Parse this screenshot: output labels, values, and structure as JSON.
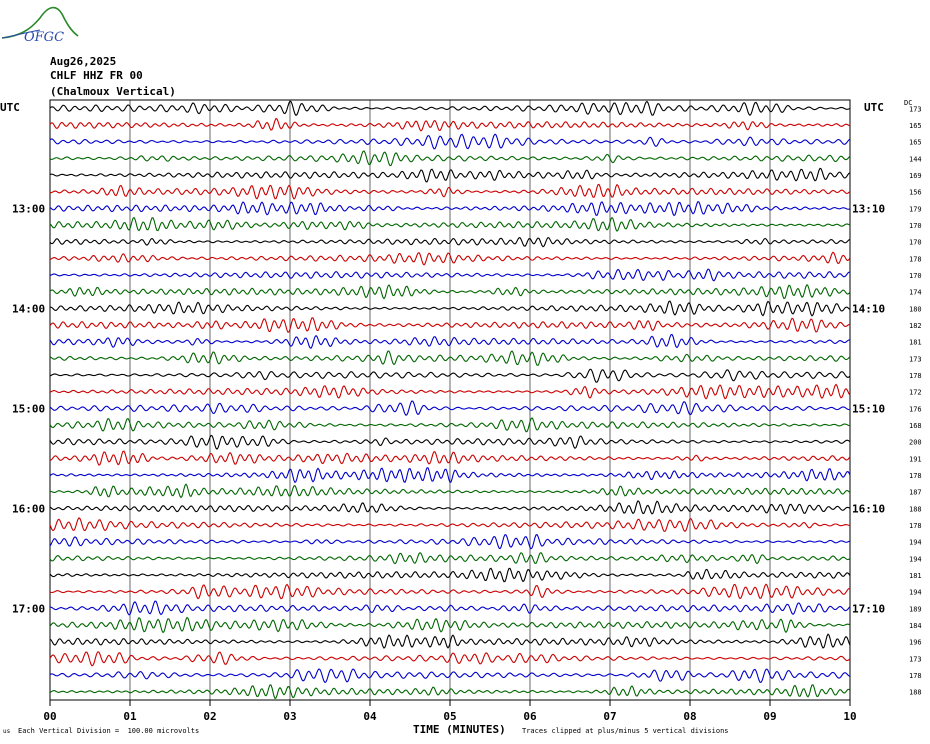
{
  "header": {
    "logo_text": "OFGC",
    "date": "Aug26,2025",
    "station": "CHLF HHZ FR 00",
    "location": "(Chalmoux Vertical)"
  },
  "utc_left_label": "UTC",
  "utc_right_label": "UTC",
  "dc_label": "DC",
  "chart_data": {
    "type": "line",
    "title": "",
    "xlabel": "TIME (MINUTES)",
    "ylabel": "",
    "xlim": [
      0,
      10
    ],
    "x_ticks": [
      "00",
      "01",
      "02",
      "03",
      "04",
      "05",
      "06",
      "07",
      "08",
      "09",
      "10"
    ],
    "trace_colors": [
      "#000000",
      "#cc0000",
      "#0000cc",
      "#006600"
    ],
    "left_time_labels": [
      "13:00",
      "14:00",
      "15:00",
      "16:00",
      "17:00"
    ],
    "right_time_labels": [
      "13:10",
      "14:10",
      "15:10",
      "16:10",
      "17:10"
    ],
    "time_label_rows": [
      6,
      12,
      18,
      24,
      30
    ],
    "dc_offsets": [
      "173",
      "165",
      "165",
      "144",
      "169",
      "156",
      "179",
      "170",
      "170",
      "178",
      "170",
      "174",
      "180",
      "182",
      "181",
      "173",
      "178",
      "172",
      "176",
      "168",
      "200",
      "191",
      "178",
      "187",
      "188",
      "178",
      "194",
      "194",
      "181",
      "194",
      "189",
      "184",
      "196",
      "173",
      "178",
      "188"
    ],
    "grid": true
  },
  "footer": {
    "vertical_division": "Each Vertical Division =  100.00 microvolts",
    "clip_note": "Traces clipped at plus/minus 5 vertical divisions",
    "corner_mark": "us"
  }
}
